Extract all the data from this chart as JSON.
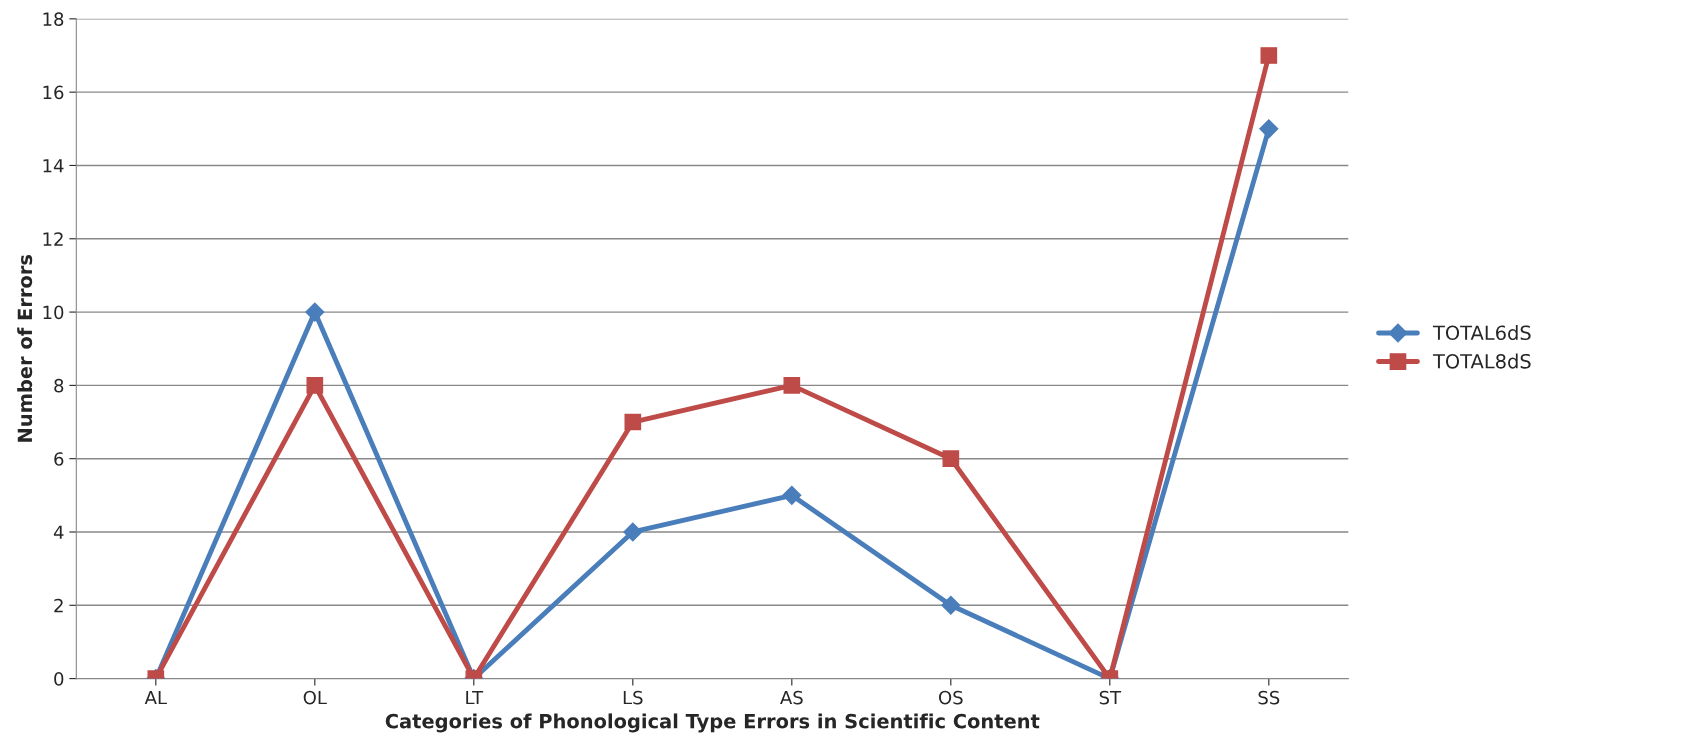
{
  "chart_data": {
    "type": "line",
    "xlabel": "Categories of Phonological Type Errors in Scientific Content",
    "ylabel": "Number of Errors",
    "categories": [
      "AL",
      "OL",
      "LT",
      "LS",
      "AS",
      "OS",
      "ST",
      "SS"
    ],
    "series": [
      {
        "name": "TOTAL6dS",
        "color": "#4a7ebb",
        "marker": "diamond",
        "values": [
          0,
          10,
          0,
          4,
          5,
          2,
          0,
          15
        ]
      },
      {
        "name": "TOTAL8dS",
        "color": "#be4b48",
        "marker": "square",
        "values": [
          0,
          8,
          0,
          7,
          8,
          6,
          0,
          17
        ]
      }
    ],
    "ylim": [
      0,
      18
    ],
    "yticks": [
      0,
      2,
      4,
      6,
      8,
      10,
      12,
      14,
      16,
      18
    ],
    "grid": "y",
    "legend": "right",
    "line_style": "solid"
  }
}
